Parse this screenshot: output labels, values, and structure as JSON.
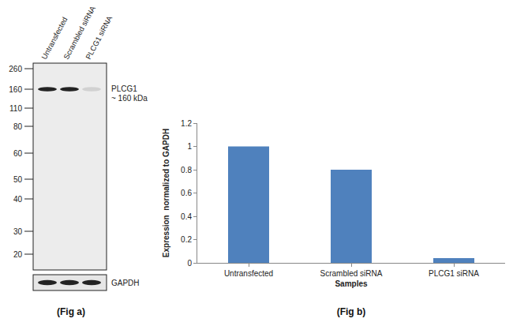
{
  "chart_data": {
    "type": "bar",
    "title": "(Fig b)",
    "categories": [
      "Untransfected",
      "Scrambled siRNA",
      "PLCG1 siRNA"
    ],
    "values": [
      1,
      0.8,
      0.04
    ],
    "color": "#4f81bd",
    "xlabel": "Samples",
    "ylabel": "Expression  normalized to GAPDH",
    "ylim": [
      0,
      1.2
    ],
    "yticks": [
      0,
      0.2,
      0.4,
      0.6,
      0.8,
      1,
      1.2
    ],
    "grid": false
  },
  "blot": {
    "caption": "(Fig a)",
    "lanes": [
      "Untransfected",
      "Scrambled siRNA",
      "PLCG1 siRNA"
    ],
    "markers": [
      260,
      160,
      110,
      80,
      60,
      50,
      40,
      30,
      20
    ],
    "bands": [
      {
        "label": "PLCG1",
        "sublabel": "~ 160 kDa",
        "marker": 160
      },
      {
        "label": "GAPDH"
      }
    ]
  }
}
